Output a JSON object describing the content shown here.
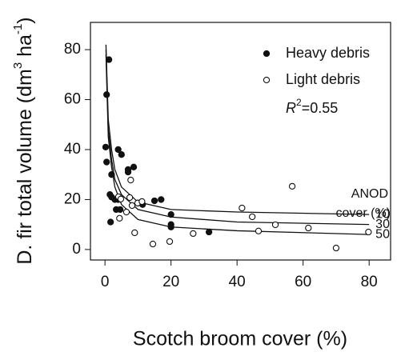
{
  "chart_data": {
    "type": "scatter",
    "x_label": "Scotch broom cover (%)",
    "y_label_parts": [
      "D. fir total volume (dm",
      "3",
      " ha",
      "-1",
      ")"
    ],
    "xlim": [
      -4.4,
      86.5
    ],
    "ylim": [
      -4.2,
      90.9
    ],
    "xticks": [
      0,
      20,
      40,
      60,
      80
    ],
    "yticks": [
      0,
      20,
      40,
      60,
      80
    ],
    "legend": "top-right",
    "r2_parts": [
      "R",
      "2",
      "=0.55"
    ],
    "curve_title": [
      "ANOD",
      "cover (%)"
    ],
    "series": [
      {
        "name": "Heavy debris",
        "marker": "filled",
        "color": "#111111",
        "x": [
          1.2,
          0.5,
          0.2,
          0.5,
          2,
          1.5,
          1.7,
          4,
          5,
          7,
          7,
          8.7,
          4,
          3.4,
          4.6,
          10,
          11.4,
          15,
          17,
          20,
          20,
          20,
          31.5,
          2,
          3
        ],
        "values": [
          76,
          62,
          41,
          35,
          30,
          22,
          11,
          40,
          38,
          32,
          31,
          33,
          20,
          16,
          16,
          18.6,
          18,
          19.5,
          20,
          14,
          10,
          9,
          7,
          21,
          20
        ]
      },
      {
        "name": "Light debris",
        "marker": "open",
        "color": "#111111",
        "x": [
          4.1,
          4.8,
          4.4,
          6.5,
          7.5,
          8.2,
          7.8,
          9.9,
          9,
          11.2,
          14.5,
          19.6,
          26.7,
          41.5,
          44.6,
          46.5,
          51.6,
          56.7,
          61.6,
          70,
          79.8
        ],
        "values": [
          21.1,
          20.2,
          12.5,
          15,
          20.8,
          17.6,
          27.8,
          18.6,
          6.7,
          19.2,
          2.2,
          3.2,
          6.4,
          16.6,
          13.1,
          7.4,
          9.9,
          25.3,
          8.6,
          0.6,
          7
        ]
      }
    ],
    "curves": [
      {
        "name": "10",
        "color": "#111111",
        "x": [
          0.3,
          1,
          2,
          3,
          5,
          10,
          20,
          40,
          80
        ],
        "values": [
          82,
          52,
          40,
          32,
          25,
          19,
          16,
          15,
          14
        ]
      },
      {
        "name": "30",
        "color": "#111111",
        "x": [
          0.3,
          1,
          2,
          3,
          5,
          10,
          20,
          40,
          80
        ],
        "values": [
          80,
          48,
          36,
          28,
          22,
          16,
          13,
          11,
          10
        ]
      },
      {
        "name": "50",
        "color": "#111111",
        "x": [
          0.3,
          1,
          2,
          3,
          5,
          10,
          20,
          40,
          80
        ],
        "values": [
          78,
          45,
          33,
          25,
          18,
          12,
          9,
          7.5,
          6
        ]
      }
    ]
  }
}
